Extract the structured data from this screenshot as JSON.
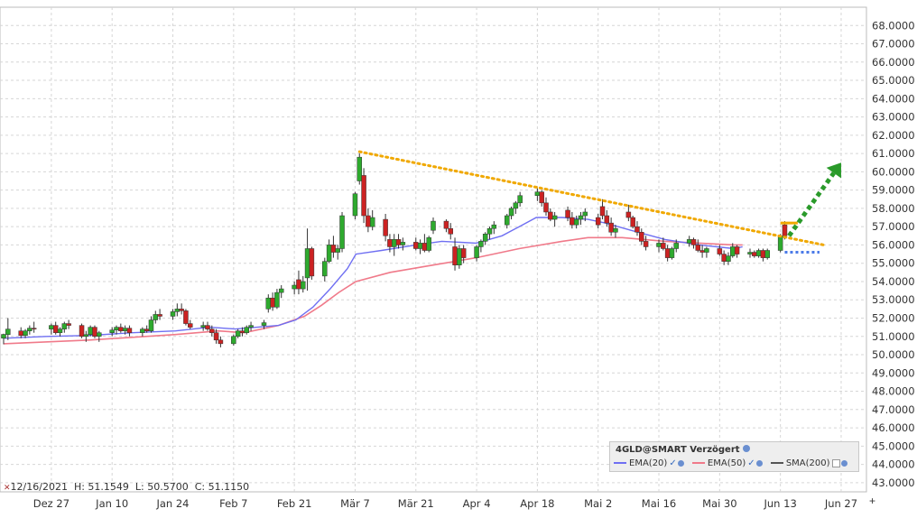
{
  "chart_data": {
    "type": "candlestick",
    "y_ticks": [
      "43.0000",
      "44.0000",
      "45.0000",
      "46.0000",
      "47.0000",
      "48.0000",
      "49.0000",
      "50.0000",
      "51.0000",
      "52.0000",
      "53.0000",
      "54.0000",
      "55.0000",
      "56.0000",
      "57.0000",
      "58.0000",
      "59.0000",
      "60.0000",
      "61.0000",
      "62.0000",
      "63.0000",
      "64.0000",
      "65.0000",
      "66.0000",
      "67.0000",
      "68.0000"
    ],
    "ylim": [
      42.5,
      69.0
    ],
    "x_ticks": [
      "Dez 27",
      "Jan 10",
      "Jan 24",
      "Feb 7",
      "Feb 21",
      "Mär 7",
      "Mär 21",
      "Apr 4",
      "Apr 18",
      "Mai 2",
      "Mai 16",
      "Mai 30",
      "Jun 13",
      "Jun 27"
    ],
    "x_range": [
      "2021-12-16",
      "2022-07-02"
    ],
    "legend": {
      "title": "4GLD@SMART Verzögert",
      "items": [
        "EMA(20)",
        "EMA(50)",
        "SMA(200)"
      ]
    },
    "series_colors": {
      "up": "#2eaa2e",
      "down": "#cc2222",
      "ema20": "#6f6ff2",
      "ema50": "#f07a8a",
      "sma200": "#555555",
      "trend": "#f0a800",
      "arrow": "#2a9a2a",
      "support": "#4a7ae8"
    },
    "ohlc_readout": {
      "date": "12/16/2021",
      "high": "H: 51.1549",
      "low": "L: 50.5700",
      "close": "C: 51.1150"
    },
    "candles": [
      [
        "2021-12-16",
        50.9,
        51.15,
        50.57,
        51.11
      ],
      [
        "2021-12-17",
        51.1,
        52.0,
        50.8,
        51.4
      ],
      [
        "2021-12-20",
        51.3,
        51.5,
        50.9,
        51.05
      ],
      [
        "2021-12-21",
        51.05,
        51.4,
        50.9,
        51.3
      ],
      [
        "2021-12-22",
        51.3,
        51.6,
        51.1,
        51.45
      ],
      [
        "2021-12-23",
        51.45,
        51.8,
        51.2,
        51.4
      ],
      [
        "2021-12-27",
        51.4,
        51.7,
        51.1,
        51.6
      ],
      [
        "2021-12-28",
        51.6,
        51.8,
        51.1,
        51.2
      ],
      [
        "2021-12-29",
        51.2,
        51.5,
        51.0,
        51.4
      ],
      [
        "2021-12-30",
        51.4,
        51.8,
        51.2,
        51.7
      ],
      [
        "2021-12-31",
        51.7,
        51.9,
        51.4,
        51.6
      ],
      [
        "2022-01-03",
        51.6,
        51.7,
        50.9,
        51.0
      ],
      [
        "2022-01-04",
        51.0,
        51.3,
        50.7,
        51.1
      ],
      [
        "2022-01-05",
        51.1,
        51.6,
        51.0,
        51.5
      ],
      [
        "2022-01-06",
        51.5,
        51.6,
        50.9,
        51.0
      ],
      [
        "2022-01-07",
        51.0,
        51.3,
        50.7,
        51.2
      ],
      [
        "2022-01-10",
        51.2,
        51.5,
        51.0,
        51.35
      ],
      [
        "2022-01-11",
        51.35,
        51.6,
        51.1,
        51.5
      ],
      [
        "2022-01-12",
        51.5,
        51.7,
        51.2,
        51.3
      ],
      [
        "2022-01-13",
        51.3,
        51.6,
        51.1,
        51.45
      ],
      [
        "2022-01-14",
        51.45,
        51.6,
        51.0,
        51.2
      ],
      [
        "2022-01-17",
        51.2,
        51.5,
        51.0,
        51.4
      ],
      [
        "2022-01-18",
        51.4,
        51.6,
        51.2,
        51.3
      ],
      [
        "2022-01-19",
        51.3,
        52.1,
        51.2,
        51.9
      ],
      [
        "2022-01-20",
        51.9,
        52.4,
        51.7,
        52.2
      ],
      [
        "2022-01-21",
        52.2,
        52.5,
        51.9,
        52.1
      ],
      [
        "2022-01-24",
        52.1,
        52.5,
        51.9,
        52.35
      ],
      [
        "2022-01-25",
        52.35,
        52.8,
        52.1,
        52.5
      ],
      [
        "2022-01-26",
        52.5,
        52.8,
        52.2,
        52.4
      ],
      [
        "2022-01-27",
        52.4,
        52.5,
        51.6,
        51.7
      ],
      [
        "2022-01-28",
        51.7,
        51.9,
        51.4,
        51.5
      ],
      [
        "2022-01-31",
        51.5,
        51.8,
        51.3,
        51.6
      ],
      [
        "2022-02-01",
        51.6,
        51.8,
        51.3,
        51.4
      ],
      [
        "2022-02-02",
        51.4,
        51.6,
        51.0,
        51.2
      ],
      [
        "2022-02-03",
        51.2,
        51.4,
        50.6,
        50.8
      ],
      [
        "2022-02-04",
        50.8,
        51.0,
        50.4,
        50.6
      ],
      [
        "2022-02-07",
        50.6,
        51.1,
        50.5,
        51.0
      ],
      [
        "2022-02-08",
        51.0,
        51.4,
        50.9,
        51.3
      ],
      [
        "2022-02-09",
        51.3,
        51.5,
        51.0,
        51.2
      ],
      [
        "2022-02-10",
        51.2,
        51.6,
        51.1,
        51.5
      ],
      [
        "2022-02-11",
        51.5,
        51.8,
        51.3,
        51.6
      ],
      [
        "2022-02-14",
        51.6,
        51.9,
        51.4,
        51.75
      ],
      [
        "2022-02-15",
        52.5,
        53.3,
        52.3,
        53.1
      ],
      [
        "2022-02-16",
        53.1,
        53.4,
        52.4,
        52.6
      ],
      [
        "2022-02-17",
        52.6,
        53.6,
        52.5,
        53.4
      ],
      [
        "2022-02-18",
        53.4,
        53.8,
        53.1,
        53.6
      ],
      [
        "2022-02-21",
        53.6,
        54.0,
        53.3,
        53.8
      ],
      [
        "2022-02-22",
        54.1,
        54.6,
        53.3,
        53.6
      ],
      [
        "2022-02-23",
        53.6,
        54.3,
        53.4,
        54.0
      ],
      [
        "2022-02-24",
        54.2,
        56.9,
        53.5,
        55.8
      ],
      [
        "2022-02-25",
        55.8,
        55.9,
        54.1,
        54.3
      ],
      [
        "2022-02-28",
        54.3,
        55.3,
        54.0,
        55.1
      ],
      [
        "2022-03-01",
        55.1,
        56.3,
        55.0,
        56.0
      ],
      [
        "2022-03-02",
        56.0,
        56.5,
        55.3,
        55.6
      ],
      [
        "2022-03-03",
        55.6,
        56.0,
        55.2,
        55.8
      ],
      [
        "2022-03-04",
        55.8,
        57.8,
        55.6,
        57.6
      ],
      [
        "2022-03-07",
        57.6,
        58.9,
        57.4,
        58.8
      ],
      [
        "2022-03-08",
        59.5,
        61.0,
        59.3,
        60.8
      ],
      [
        "2022-03-09",
        59.8,
        60.2,
        57.2,
        57.6
      ],
      [
        "2022-03-10",
        57.6,
        58.0,
        56.7,
        57.0
      ],
      [
        "2022-03-11",
        57.0,
        57.9,
        56.8,
        57.5
      ],
      [
        "2022-03-14",
        57.4,
        57.7,
        56.2,
        56.5
      ],
      [
        "2022-03-15",
        56.3,
        56.6,
        55.6,
        55.9
      ],
      [
        "2022-03-16",
        55.9,
        56.6,
        55.4,
        56.3
      ],
      [
        "2022-03-17",
        56.3,
        56.6,
        55.8,
        56.0
      ],
      [
        "2022-03-18",
        56.0,
        56.4,
        55.7,
        56.15
      ],
      [
        "2022-03-21",
        56.15,
        56.4,
        55.7,
        55.8
      ],
      [
        "2022-03-22",
        55.8,
        56.3,
        55.5,
        56.1
      ],
      [
        "2022-03-23",
        56.1,
        56.6,
        55.6,
        55.7
      ],
      [
        "2022-03-24",
        55.7,
        56.5,
        55.6,
        56.4
      ],
      [
        "2022-03-25",
        56.8,
        57.5,
        56.6,
        57.3
      ],
      [
        "2022-03-28",
        57.3,
        57.4,
        56.7,
        56.9
      ],
      [
        "2022-03-29",
        56.9,
        57.2,
        56.3,
        56.6
      ],
      [
        "2022-03-30",
        55.9,
        56.4,
        54.6,
        54.9
      ],
      [
        "2022-03-31",
        54.9,
        56.0,
        54.7,
        55.8
      ],
      [
        "2022-04-01",
        55.8,
        56.0,
        55.0,
        55.3
      ],
      [
        "2022-04-04",
        55.3,
        56.0,
        55.1,
        55.9
      ],
      [
        "2022-04-05",
        55.9,
        56.3,
        55.6,
        56.2
      ],
      [
        "2022-04-06",
        56.2,
        56.7,
        56.0,
        56.6
      ],
      [
        "2022-04-07",
        56.6,
        57.0,
        56.3,
        56.9
      ],
      [
        "2022-04-08",
        56.9,
        57.3,
        56.6,
        57.1
      ],
      [
        "2022-04-11",
        57.1,
        57.7,
        56.9,
        57.6
      ],
      [
        "2022-04-12",
        57.6,
        58.1,
        57.4,
        58.0
      ],
      [
        "2022-04-13",
        58.0,
        58.4,
        57.7,
        58.3
      ],
      [
        "2022-04-14",
        58.3,
        58.9,
        58.1,
        58.7
      ],
      [
        "2022-04-18",
        58.7,
        59.1,
        58.4,
        58.9
      ],
      [
        "2022-04-19",
        58.9,
        59.0,
        58.1,
        58.3
      ],
      [
        "2022-04-20",
        58.3,
        58.6,
        57.6,
        57.8
      ],
      [
        "2022-04-21",
        57.8,
        58.0,
        57.3,
        57.4
      ],
      [
        "2022-04-22",
        57.4,
        57.8,
        57.0,
        57.6
      ],
      [
        "2022-04-25",
        57.9,
        58.1,
        57.3,
        57.5
      ],
      [
        "2022-04-26",
        57.5,
        57.8,
        56.9,
        57.1
      ],
      [
        "2022-04-27",
        57.1,
        57.6,
        56.9,
        57.4
      ],
      [
        "2022-04-28",
        57.4,
        57.8,
        57.1,
        57.6
      ],
      [
        "2022-04-29",
        57.6,
        58.0,
        57.3,
        57.8
      ],
      [
        "2022-05-02",
        57.5,
        57.7,
        56.9,
        57.1
      ],
      [
        "2022-05-03",
        58.1,
        58.5,
        57.4,
        57.6
      ],
      [
        "2022-05-04",
        57.6,
        57.9,
        57.0,
        57.2
      ],
      [
        "2022-05-05",
        57.2,
        57.5,
        56.5,
        56.7
      ],
      [
        "2022-05-06",
        56.7,
        57.1,
        56.4,
        56.9
      ],
      [
        "2022-05-09",
        57.8,
        58.2,
        57.3,
        57.5
      ],
      [
        "2022-05-10",
        57.5,
        57.6,
        56.9,
        57.0
      ],
      [
        "2022-05-11",
        57.0,
        57.3,
        56.5,
        56.7
      ],
      [
        "2022-05-12",
        56.7,
        56.9,
        56.0,
        56.2
      ],
      [
        "2022-05-13",
        56.2,
        56.5,
        55.7,
        55.9
      ],
      [
        "2022-05-16",
        55.9,
        56.3,
        55.6,
        56.1
      ],
      [
        "2022-05-17",
        56.1,
        56.4,
        55.7,
        55.8
      ],
      [
        "2022-05-18",
        55.8,
        56.0,
        55.1,
        55.3
      ],
      [
        "2022-05-19",
        55.3,
        55.9,
        55.2,
        55.8
      ],
      [
        "2022-05-20",
        55.8,
        56.3,
        55.6,
        56.1
      ],
      [
        "2022-05-23",
        56.1,
        56.5,
        55.9,
        56.3
      ],
      [
        "2022-05-24",
        56.3,
        56.4,
        55.8,
        56.0
      ],
      [
        "2022-05-25",
        56.0,
        56.3,
        55.6,
        55.7
      ],
      [
        "2022-05-26",
        55.7,
        56.0,
        55.3,
        55.6
      ],
      [
        "2022-05-27",
        55.6,
        55.9,
        55.3,
        55.8
      ],
      [
        "2022-05-30",
        55.8,
        56.0,
        55.4,
        55.5
      ],
      [
        "2022-05-31",
        55.5,
        55.7,
        54.9,
        55.1
      ],
      [
        "2022-06-01",
        55.1,
        55.6,
        54.9,
        55.4
      ],
      [
        "2022-06-02",
        55.4,
        56.1,
        55.3,
        55.9
      ],
      [
        "2022-06-03",
        55.9,
        56.0,
        55.3,
        55.5
      ],
      [
        "2022-06-06",
        55.5,
        55.8,
        55.3,
        55.6
      ],
      [
        "2022-06-07",
        55.6,
        55.7,
        55.3,
        55.4
      ],
      [
        "2022-06-08",
        55.4,
        55.8,
        55.3,
        55.7
      ],
      [
        "2022-06-09",
        55.7,
        55.8,
        55.1,
        55.3
      ],
      [
        "2022-06-10",
        55.3,
        55.8,
        55.2,
        55.7
      ],
      [
        "2022-06-13",
        55.7,
        56.6,
        55.6,
        56.5
      ],
      [
        "2022-06-14",
        57.1,
        57.3,
        56.3,
        56.5
      ]
    ],
    "ema20": [
      [
        0,
        50.9
      ],
      [
        0.05,
        51.0
      ],
      [
        0.1,
        51.05
      ],
      [
        0.15,
        51.2
      ],
      [
        0.2,
        51.3
      ],
      [
        0.24,
        51.5
      ],
      [
        0.27,
        51.4
      ],
      [
        0.32,
        51.6
      ],
      [
        0.34,
        51.9
      ],
      [
        0.36,
        52.6
      ],
      [
        0.38,
        53.6
      ],
      [
        0.4,
        54.7
      ],
      [
        0.41,
        55.5
      ],
      [
        0.44,
        55.7
      ],
      [
        0.48,
        56.0
      ],
      [
        0.51,
        56.2
      ],
      [
        0.55,
        56.1
      ],
      [
        0.58,
        56.5
      ],
      [
        0.6,
        57.0
      ],
      [
        0.62,
        57.5
      ],
      [
        0.65,
        57.5
      ],
      [
        0.68,
        57.4
      ],
      [
        0.7,
        57.2
      ],
      [
        0.73,
        56.8
      ],
      [
        0.77,
        56.3
      ],
      [
        0.81,
        56.0
      ],
      [
        0.85,
        55.8
      ],
      [
        0.86,
        55.9
      ]
    ],
    "ema50": [
      [
        0,
        50.6
      ],
      [
        0.1,
        50.8
      ],
      [
        0.2,
        51.1
      ],
      [
        0.25,
        51.3
      ],
      [
        0.28,
        51.2
      ],
      [
        0.32,
        51.6
      ],
      [
        0.35,
        52.1
      ],
      [
        0.37,
        52.7
      ],
      [
        0.39,
        53.4
      ],
      [
        0.41,
        54.0
      ],
      [
        0.45,
        54.5
      ],
      [
        0.5,
        54.9
      ],
      [
        0.55,
        55.3
      ],
      [
        0.6,
        55.8
      ],
      [
        0.65,
        56.2
      ],
      [
        0.68,
        56.4
      ],
      [
        0.72,
        56.4
      ],
      [
        0.77,
        56.2
      ],
      [
        0.81,
        56.1
      ],
      [
        0.85,
        56.0
      ],
      [
        0.86,
        56.0
      ]
    ],
    "trendline": [
      [
        "2022-03-08",
        61.1
      ],
      [
        "2022-06-23",
        56.0
      ]
    ],
    "support": [
      [
        "2022-06-14",
        55.6
      ],
      [
        "2022-06-22",
        55.6
      ]
    ],
    "breakout_bar": [
      [
        "2022-06-13",
        57.2
      ],
      [
        "2022-06-17",
        57.2
      ]
    ],
    "arrow": [
      [
        "2022-06-15",
        56.5
      ],
      [
        "2022-06-27",
        60.5
      ]
    ]
  }
}
